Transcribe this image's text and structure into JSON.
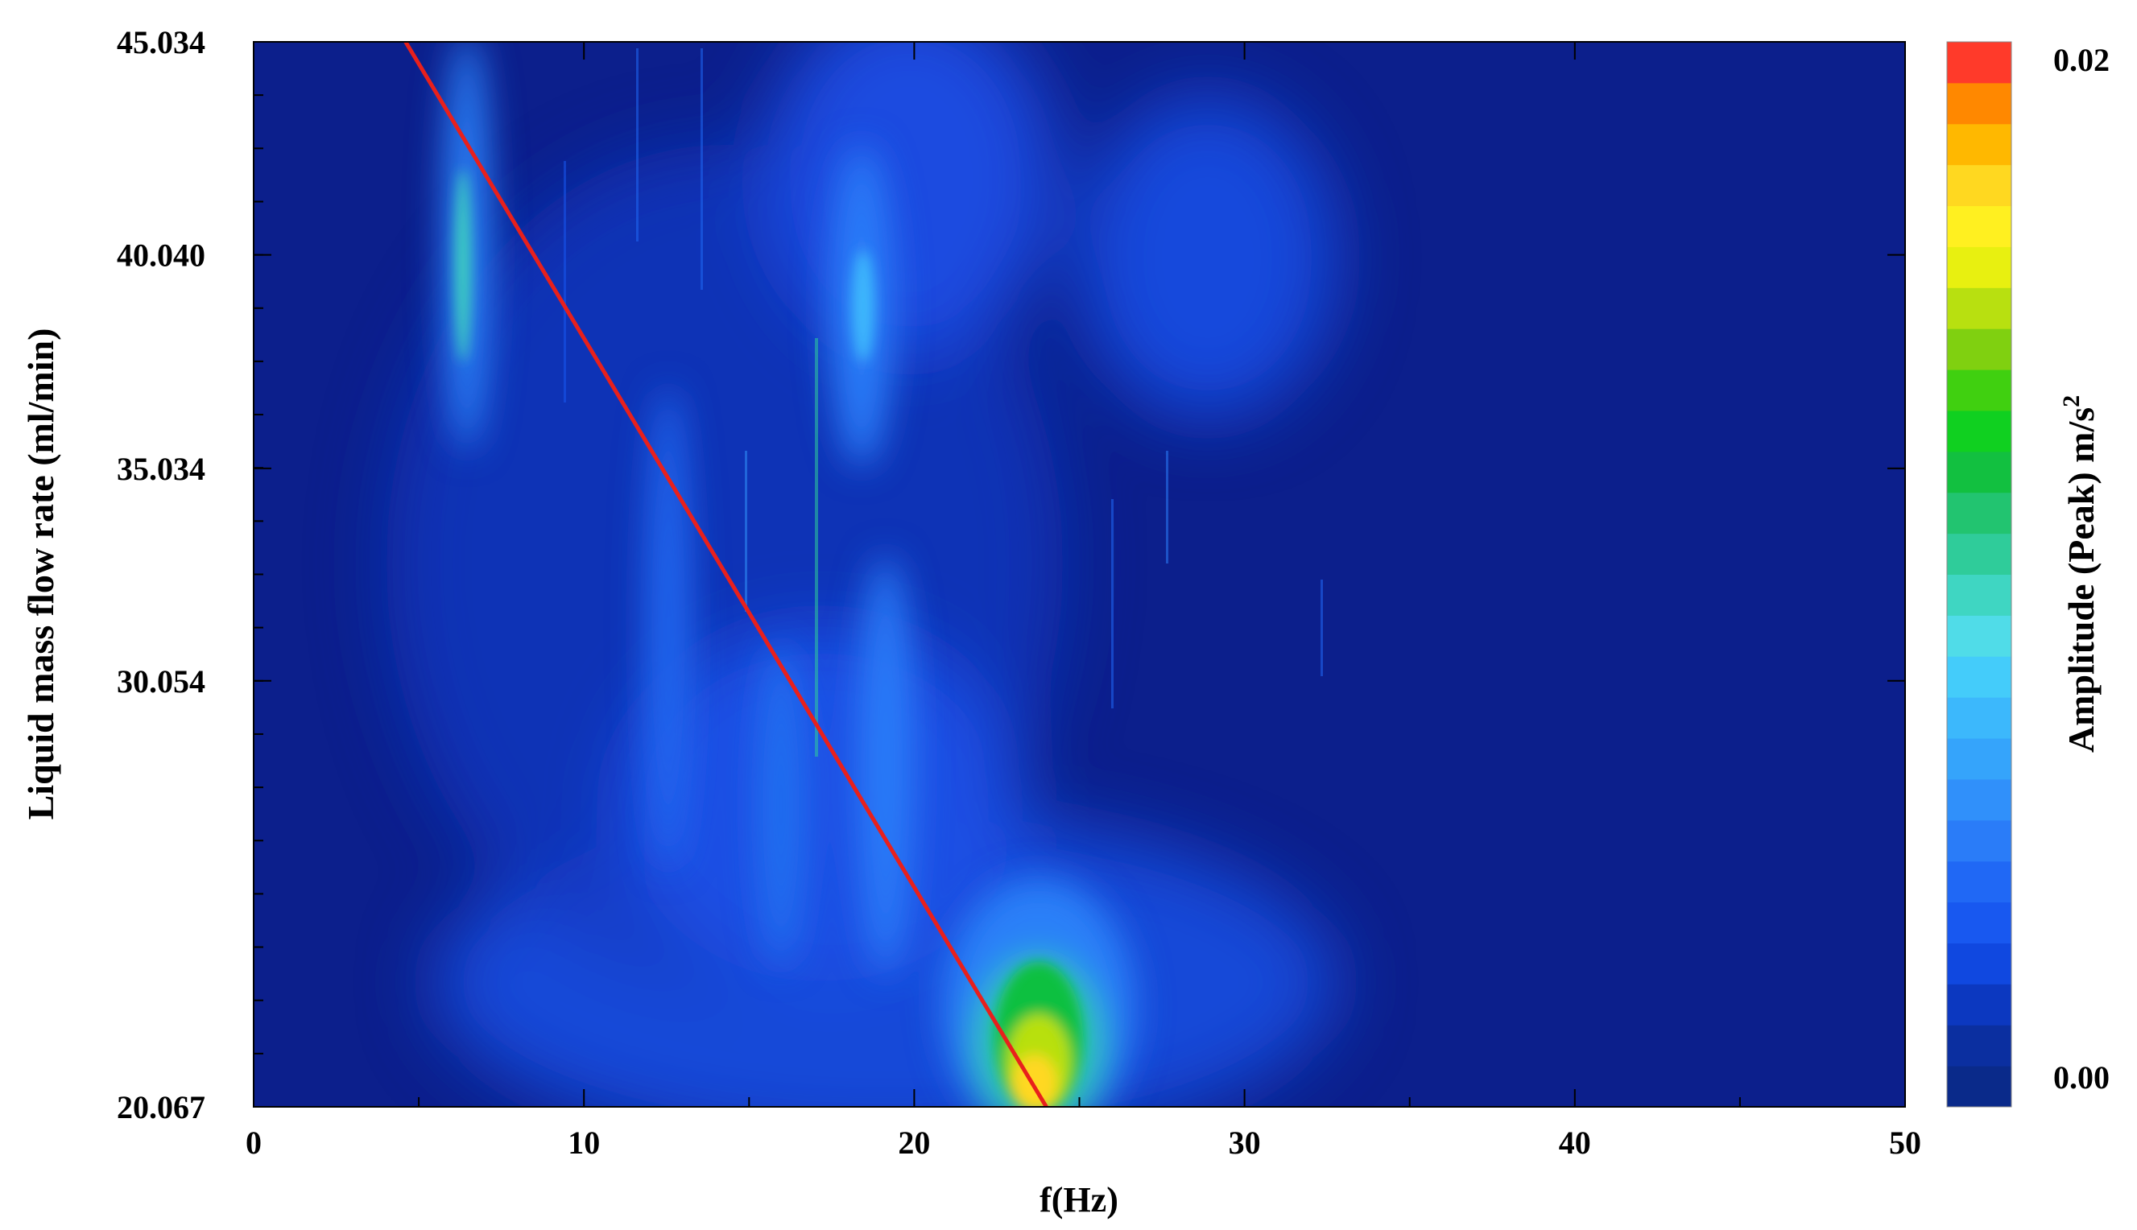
{
  "chart_data": {
    "type": "heatmap",
    "xlabel": "f(Hz)",
    "ylabel": "Liquid mass flow rate (ml/min)",
    "x_ticks": [
      0,
      10,
      20,
      30,
      40,
      50
    ],
    "y_ticks": [
      20.067,
      30.054,
      35.034,
      40.04,
      45.034
    ],
    "x_tick_labels": [
      "0",
      "10",
      "20",
      "30",
      "40",
      "50"
    ],
    "y_tick_labels": [
      "20.067",
      "30.054",
      "35.034",
      "40.040",
      "45.034"
    ],
    "xlim": [
      0,
      50
    ],
    "ylim": [
      20.067,
      45.034
    ],
    "colorbar": {
      "label": "Amplitude (Peak) m/s",
      "label_superscript": "2",
      "range": [
        0.0,
        0.02
      ],
      "tick_labels": [
        "0.02",
        "0.00"
      ],
      "colors": [
        "#0a2a8a",
        "#0b2fa0",
        "#0c38c0",
        "#1048e0",
        "#1858f0",
        "#2068f5",
        "#2a7cf8",
        "#3090fa",
        "#35a4fb",
        "#3cb8fc",
        "#44ccfa",
        "#50dce8",
        "#3fd6c2",
        "#2fcc9a",
        "#22c470",
        "#12c040",
        "#10d020",
        "#40d010",
        "#80d010",
        "#b8e010",
        "#e8f010",
        "#fff020",
        "#ffd820",
        "#ffb800",
        "#ff8800",
        "#ff3a2a"
      ]
    },
    "features": [
      {
        "kind": "peak",
        "f": 23.5,
        "flow": 20.067,
        "amplitude": 0.017
      },
      {
        "kind": "peak",
        "f": 23.5,
        "flow": 25.0,
        "amplitude": 0.01
      },
      {
        "kind": "peak",
        "f": 6.2,
        "flow": 42.0,
        "amplitude": 0.007
      },
      {
        "kind": "peak",
        "f": 18.3,
        "flow": 40.04,
        "amplitude": 0.005
      },
      {
        "kind": "peak",
        "f": 19.0,
        "flow": 28.0,
        "amplitude": 0.006
      }
    ],
    "trend_line": {
      "color": "#e8201c",
      "points": [
        {
          "f": 4.6,
          "flow": 45.034
        },
        {
          "f": 24.0,
          "flow": 20.067
        }
      ]
    }
  }
}
